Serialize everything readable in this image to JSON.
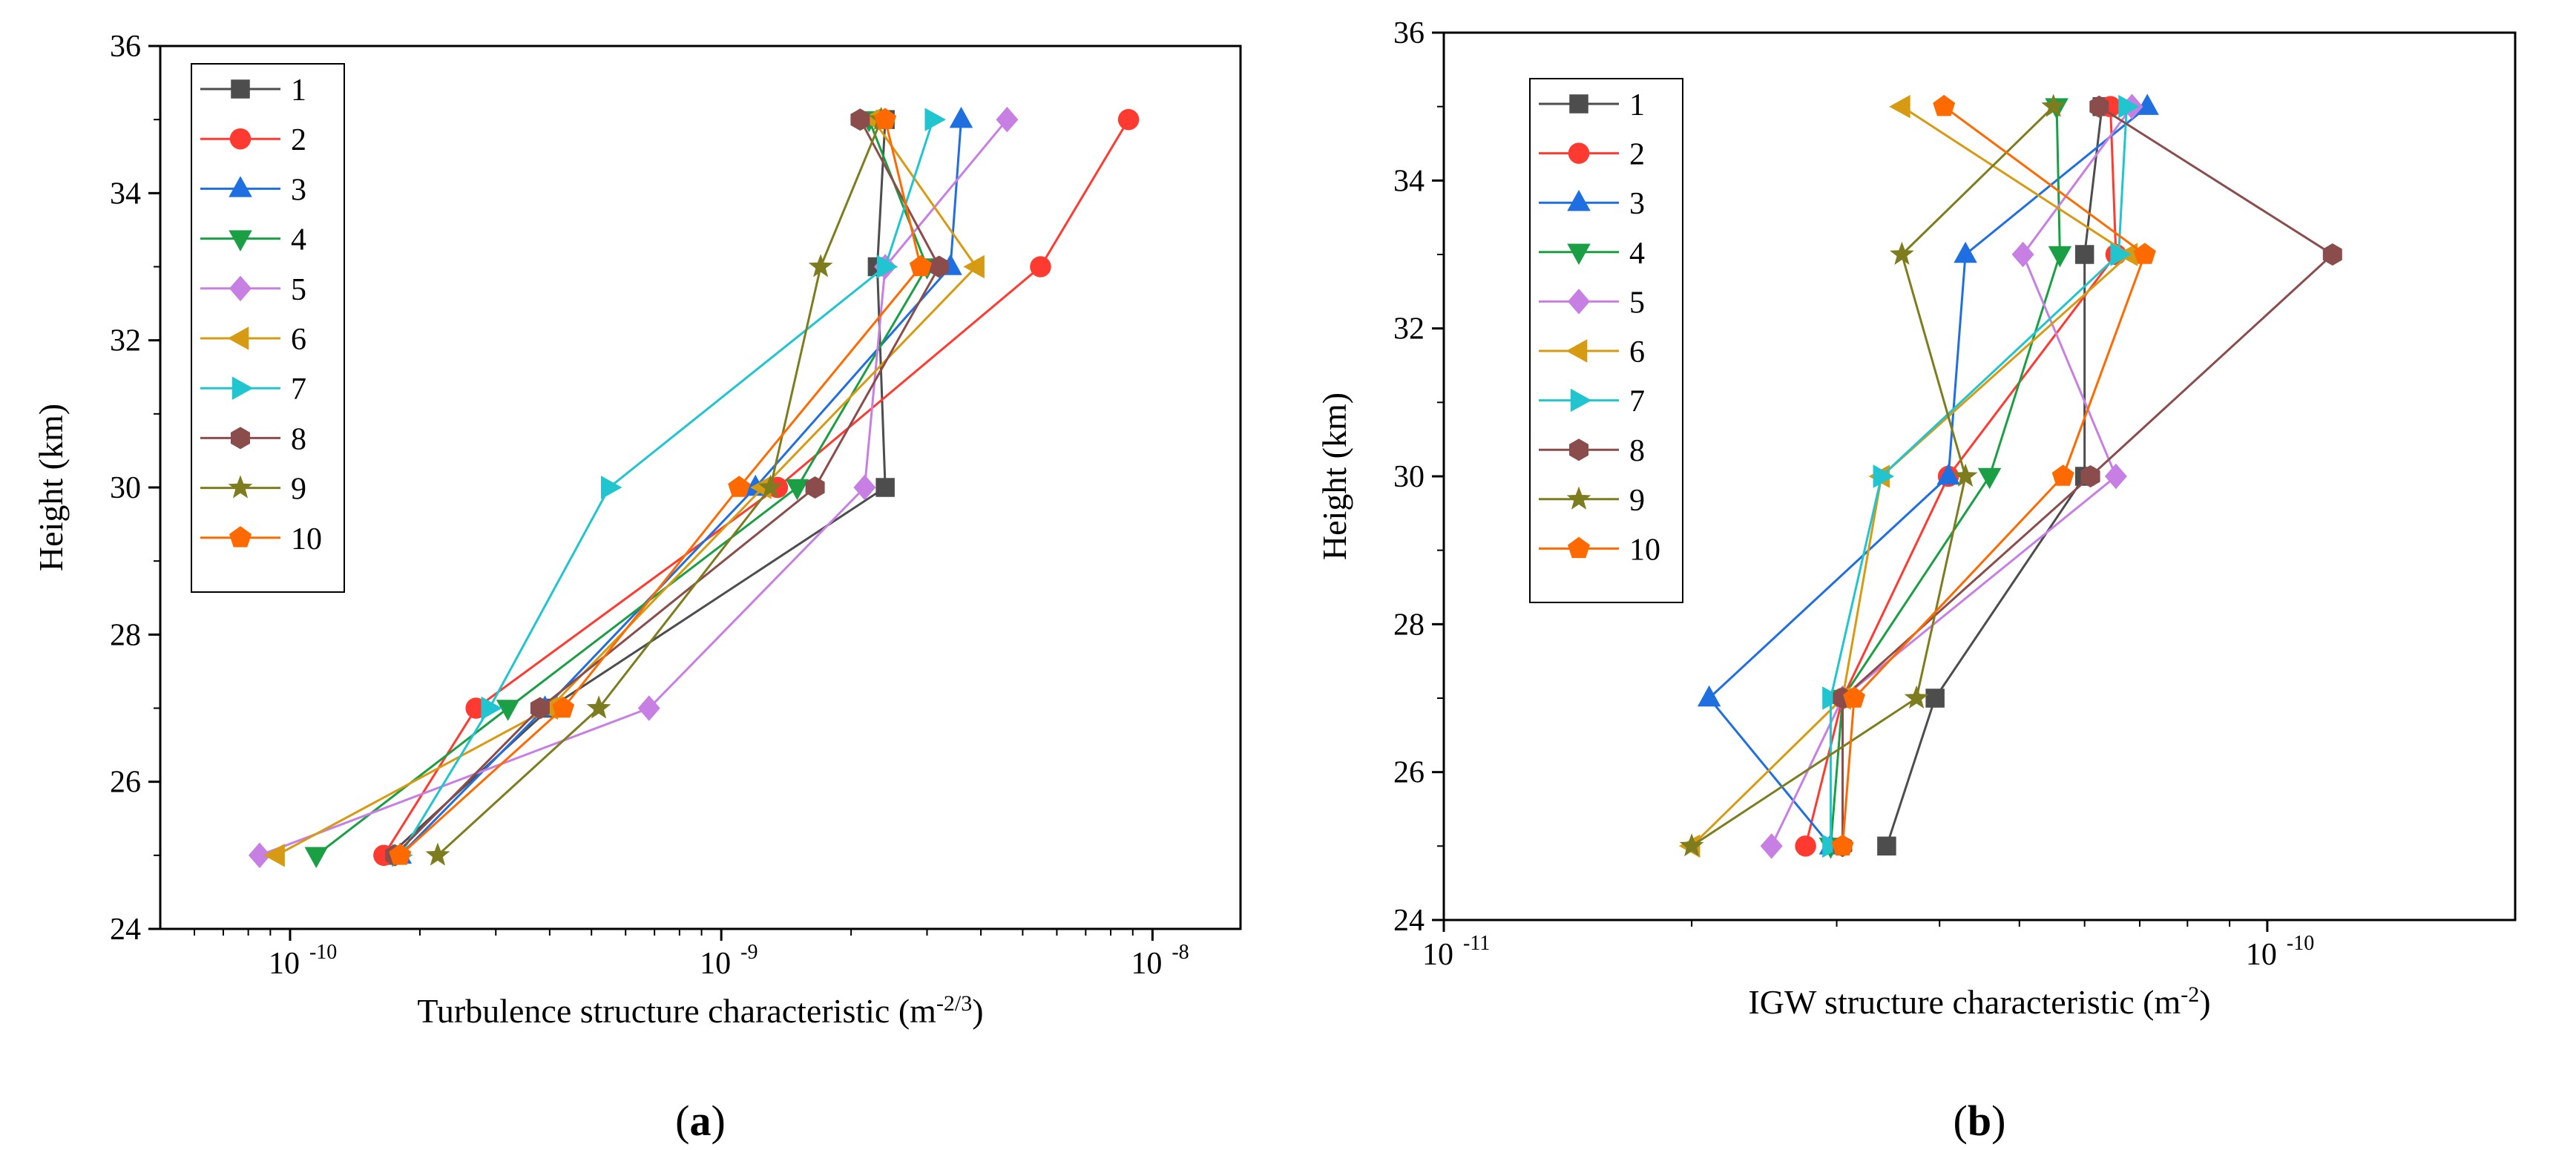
{
  "panels": [
    {
      "label": "(a)",
      "label_letter": "a"
    },
    {
      "label": "(b)",
      "label_letter": "b"
    }
  ],
  "chart_data": [
    {
      "type": "line",
      "panel": "(a)",
      "xlabel": "Turbulence structure characteristic (m",
      "xlabel_unit_exp": "-2/3",
      "ylabel": "Height (km)",
      "xscale": "log",
      "xlim": [
        5e-11,
        1.6e-08
      ],
      "ylim": [
        24,
        36
      ],
      "yticks": [
        24,
        26,
        28,
        30,
        32,
        34,
        36
      ],
      "xticks": [
        {
          "value": 1e-10,
          "label": "10",
          "exp": "-10"
        },
        {
          "value": 1e-09,
          "label": "10",
          "exp": "-9"
        },
        {
          "value": 1e-08,
          "label": "10",
          "exp": "-8"
        }
      ],
      "grid": false,
      "legend_position": "top-left",
      "heights": [
        25,
        27,
        30,
        33,
        35
      ],
      "series": [
        {
          "name": "1",
          "color": "#4d4d4d",
          "marker": "square",
          "x": [
            1.7e-10,
            4e-10,
            2.4e-09,
            2.3e-09,
            2.4e-09
          ]
        },
        {
          "name": "2",
          "color": "#ff3a30",
          "marker": "circle",
          "x": [
            1.65e-10,
            2.7e-10,
            1.35e-09,
            5.5e-09,
            8.8e-09
          ]
        },
        {
          "name": "3",
          "color": "#1f6fe0",
          "marker": "triangle-up",
          "x": [
            1.8e-10,
            3.9e-10,
            1.2e-09,
            3.4e-09,
            3.6e-09
          ]
        },
        {
          "name": "4",
          "color": "#1a9f45",
          "marker": "triangle-down",
          "x": [
            1.15e-10,
            3.2e-10,
            1.5e-09,
            3e-09,
            2.2e-09
          ]
        },
        {
          "name": "5",
          "color": "#c77fe3",
          "marker": "diamond",
          "x": [
            8.5e-11,
            6.8e-10,
            2.15e-09,
            2.4e-09,
            4.6e-09
          ]
        },
        {
          "name": "6",
          "color": "#d69b12",
          "marker": "triangle-left",
          "x": [
            9.3e-11,
            4e-10,
            1.25e-09,
            3.9e-09,
            2.25e-09
          ]
        },
        {
          "name": "7",
          "color": "#20c5cf",
          "marker": "triangle-right",
          "x": [
            1.8e-10,
            2.9e-10,
            5.5e-10,
            2.4e-09,
            3.1e-09
          ]
        },
        {
          "name": "8",
          "color": "#8b4c4c",
          "marker": "hexagon",
          "x": [
            1.75e-10,
            3.8e-10,
            1.65e-09,
            3.2e-09,
            2.1e-09
          ]
        },
        {
          "name": "9",
          "color": "#7d7d1f",
          "marker": "star",
          "x": [
            2.2e-10,
            5.2e-10,
            1.3e-09,
            1.7e-09,
            2.35e-09
          ]
        },
        {
          "name": "10",
          "color": "#ff6a00",
          "marker": "pentagon",
          "x": [
            1.8e-10,
            4.3e-10,
            1.1e-09,
            2.9e-09,
            2.4e-09
          ]
        }
      ]
    },
    {
      "type": "line",
      "panel": "(b)",
      "xlabel": "IGW structure characteristic (m",
      "xlabel_unit_exp": "-2",
      "ylabel": "Height (km)",
      "xscale": "log",
      "xlim": [
        1e-11,
        2e-10
      ],
      "ylim": [
        24,
        36
      ],
      "yticks": [
        24,
        26,
        28,
        30,
        32,
        34,
        36
      ],
      "xticks": [
        {
          "value": 1e-11,
          "label": "10",
          "exp": "-11"
        },
        {
          "value": 1e-10,
          "label": "10",
          "exp": "-10"
        }
      ],
      "grid": false,
      "legend_position": "top-left",
      "heights": [
        25,
        27,
        30,
        33,
        35
      ],
      "series": [
        {
          "name": "1",
          "color": "#4d4d4d",
          "marker": "square",
          "x": [
            3.45e-11,
            3.95e-11,
            6e-11,
            6e-11,
            6.3e-11
          ]
        },
        {
          "name": "2",
          "color": "#ff3a30",
          "marker": "circle",
          "x": [
            2.75e-11,
            3.05e-11,
            4.1e-11,
            6.55e-11,
            6.45e-11
          ]
        },
        {
          "name": "3",
          "color": "#1f6fe0",
          "marker": "triangle-up",
          "x": [
            2.95e-11,
            2.1e-11,
            4.1e-11,
            4.3e-11,
            7.15e-11
          ]
        },
        {
          "name": "4",
          "color": "#1a9f45",
          "marker": "triangle-down",
          "x": [
            2.95e-11,
            3.05e-11,
            4.6e-11,
            5.6e-11,
            5.55e-11
          ]
        },
        {
          "name": "5",
          "color": "#c77fe3",
          "marker": "diamond",
          "x": [
            2.5e-11,
            3.05e-11,
            6.55e-11,
            5.05e-11,
            6.85e-11
          ]
        },
        {
          "name": "6",
          "color": "#d69b12",
          "marker": "triangle-left",
          "x": [
            2e-11,
            3.05e-11,
            3.4e-11,
            6.8e-11,
            3.6e-11
          ]
        },
        {
          "name": "7",
          "color": "#20c5cf",
          "marker": "triangle-right",
          "x": [
            2.95e-11,
            2.95e-11,
            3.4e-11,
            6.6e-11,
            6.75e-11
          ]
        },
        {
          "name": "8",
          "color": "#8b4c4c",
          "marker": "hexagon",
          "x": [
            3.05e-11,
            3.05e-11,
            6.1e-11,
            1.2e-10,
            6.25e-11
          ]
        },
        {
          "name": "9",
          "color": "#7d7d1f",
          "marker": "star",
          "x": [
            2e-11,
            3.75e-11,
            4.3e-11,
            3.6e-11,
            5.5e-11
          ]
        },
        {
          "name": "10",
          "color": "#ff6a00",
          "marker": "pentagon",
          "x": [
            3.05e-11,
            3.15e-11,
            5.65e-11,
            7.1e-11,
            4.05e-11
          ]
        }
      ]
    }
  ]
}
